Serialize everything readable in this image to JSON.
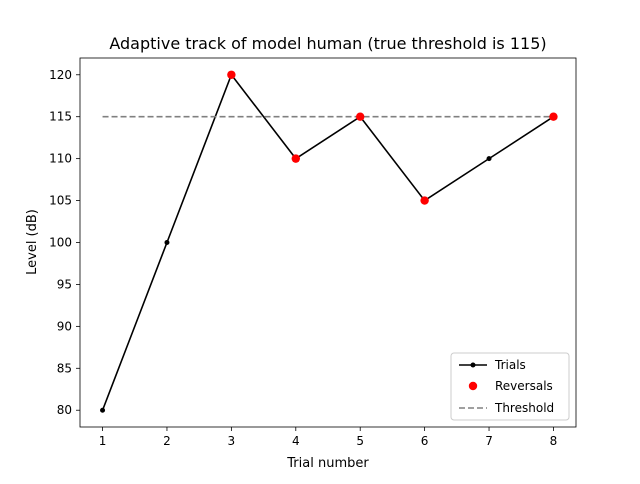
{
  "chart_data": {
    "type": "line",
    "title": "Adaptive track of model human (true threshold is 115)",
    "xlabel": "Trial number",
    "ylabel": "Level (dB)",
    "xlim": [
      0.65,
      8.35
    ],
    "ylim": [
      78,
      122
    ],
    "xticks": [
      1,
      2,
      3,
      4,
      5,
      6,
      7,
      8
    ],
    "yticks": [
      80,
      85,
      90,
      95,
      100,
      105,
      110,
      115,
      120
    ],
    "grid": false,
    "legend_position": "lower-right",
    "series": [
      {
        "name": "Trials",
        "kind": "line-markers",
        "color": "#000000",
        "x": [
          1,
          2,
          3,
          4,
          5,
          6,
          7,
          8
        ],
        "y": [
          80,
          100,
          120,
          110,
          115,
          105,
          110,
          115
        ]
      },
      {
        "name": "Reversals",
        "kind": "scatter",
        "color": "#ff0000",
        "x": [
          3,
          4,
          5,
          6,
          8
        ],
        "y": [
          120,
          110,
          115,
          105,
          115
        ]
      },
      {
        "name": "Threshold",
        "kind": "dashed-line",
        "color": "#808080",
        "x": [
          1,
          8
        ],
        "y": [
          115,
          115
        ]
      }
    ]
  }
}
